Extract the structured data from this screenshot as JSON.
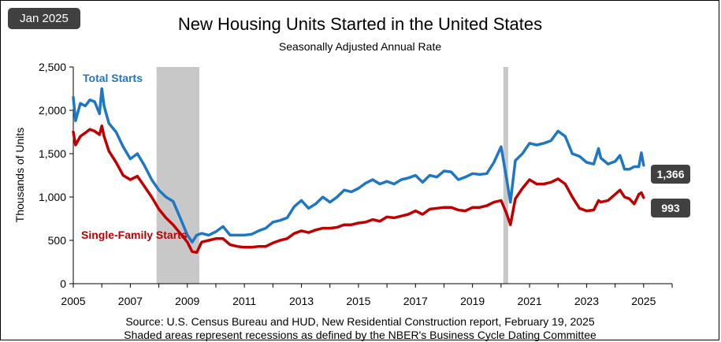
{
  "badge": "Jan 2025",
  "source_note": "Source:  U.S. Census Bureau and HUD, New Residential Construction report, February 19, 2025",
  "recession_note": "Shaded areas represent recessions as defined by the NBER's Business Cycle Dating Committee",
  "colors": {
    "total": "#1f77c4",
    "single": "#c00000",
    "recession": "#c8c8c8",
    "end_badge": "#404040"
  },
  "chart_data": {
    "type": "line",
    "title": "New Housing Units Started in the United States",
    "subtitle": "Seasonally Adjusted  Annual  Rate",
    "ylabel": "Thousands of Units",
    "xlabel": "",
    "xlim": [
      2005,
      2026
    ],
    "ylim": [
      0,
      2500
    ],
    "y_ticks": [
      0,
      500,
      1000,
      1500,
      2000,
      2500
    ],
    "y_tick_labels": [
      "0",
      "500",
      "1,000",
      "1,500",
      "2,000",
      "2,500"
    ],
    "x_ticks": [
      2005,
      2007,
      2009,
      2011,
      2013,
      2015,
      2017,
      2019,
      2021,
      2023,
      2025
    ],
    "x_tick_labels": [
      "2005",
      "2007",
      "2009",
      "2011",
      "2013",
      "2015",
      "2017",
      "2019",
      "2021",
      "2023",
      "2025"
    ],
    "grid": false,
    "recessions": [
      [
        2007.92,
        2009.42
      ],
      [
        2020.08,
        2020.25
      ]
    ],
    "series": [
      {
        "name": "Total Starts",
        "end_label": "1,366",
        "x": [
          2005.0,
          2005.08,
          2005.25,
          2005.42,
          2005.58,
          2005.75,
          2005.92,
          2006.0,
          2006.08,
          2006.25,
          2006.5,
          2006.75,
          2007.0,
          2007.25,
          2007.5,
          2007.75,
          2008.0,
          2008.25,
          2008.5,
          2008.75,
          2009.0,
          2009.17,
          2009.33,
          2009.5,
          2009.75,
          2010.0,
          2010.25,
          2010.5,
          2010.75,
          2011.0,
          2011.25,
          2011.5,
          2011.75,
          2012.0,
          2012.25,
          2012.5,
          2012.75,
          2013.0,
          2013.25,
          2013.5,
          2013.75,
          2014.0,
          2014.25,
          2014.5,
          2014.75,
          2015.0,
          2015.25,
          2015.5,
          2015.75,
          2016.0,
          2016.25,
          2016.5,
          2016.75,
          2017.0,
          2017.25,
          2017.5,
          2017.75,
          2018.0,
          2018.25,
          2018.5,
          2018.75,
          2019.0,
          2019.25,
          2019.5,
          2019.75,
          2020.0,
          2020.17,
          2020.33,
          2020.5,
          2020.75,
          2021.0,
          2021.25,
          2021.5,
          2021.75,
          2022.0,
          2022.25,
          2022.5,
          2022.75,
          2023.0,
          2023.25,
          2023.42,
          2023.5,
          2023.75,
          2024.0,
          2024.17,
          2024.33,
          2024.5,
          2024.67,
          2024.83,
          2024.92,
          2025.0
        ],
        "values": [
          2150,
          1880,
          2080,
          2050,
          2120,
          2100,
          1960,
          2250,
          2050,
          1850,
          1750,
          1580,
          1440,
          1500,
          1360,
          1200,
          1080,
          1000,
          950,
          760,
          560,
          480,
          560,
          580,
          560,
          600,
          660,
          560,
          560,
          560,
          570,
          610,
          640,
          710,
          730,
          760,
          890,
          960,
          870,
          920,
          1000,
          940,
          1000,
          1080,
          1060,
          1100,
          1160,
          1200,
          1150,
          1180,
          1150,
          1200,
          1220,
          1250,
          1170,
          1250,
          1230,
          1300,
          1290,
          1200,
          1230,
          1270,
          1260,
          1270,
          1400,
          1580,
          1260,
          940,
          1420,
          1500,
          1620,
          1600,
          1620,
          1650,
          1760,
          1700,
          1500,
          1470,
          1400,
          1380,
          1560,
          1450,
          1380,
          1410,
          1480,
          1320,
          1320,
          1350,
          1350,
          1510,
          1366
        ]
      },
      {
        "name": "Single-Family Starts",
        "end_label": "993",
        "x": [
          2005.0,
          2005.08,
          2005.25,
          2005.42,
          2005.58,
          2005.75,
          2005.92,
          2006.0,
          2006.08,
          2006.25,
          2006.5,
          2006.75,
          2007.0,
          2007.25,
          2007.5,
          2007.75,
          2008.0,
          2008.25,
          2008.5,
          2008.75,
          2009.0,
          2009.17,
          2009.33,
          2009.5,
          2009.75,
          2010.0,
          2010.25,
          2010.5,
          2010.75,
          2011.0,
          2011.25,
          2011.5,
          2011.75,
          2012.0,
          2012.25,
          2012.5,
          2012.75,
          2013.0,
          2013.25,
          2013.5,
          2013.75,
          2014.0,
          2014.25,
          2014.5,
          2014.75,
          2015.0,
          2015.25,
          2015.5,
          2015.75,
          2016.0,
          2016.25,
          2016.5,
          2016.75,
          2017.0,
          2017.25,
          2017.5,
          2017.75,
          2018.0,
          2018.25,
          2018.5,
          2018.75,
          2019.0,
          2019.25,
          2019.5,
          2019.75,
          2020.0,
          2020.17,
          2020.33,
          2020.5,
          2020.75,
          2021.0,
          2021.25,
          2021.5,
          2021.75,
          2022.0,
          2022.25,
          2022.5,
          2022.75,
          2023.0,
          2023.25,
          2023.42,
          2023.5,
          2023.75,
          2024.0,
          2024.17,
          2024.33,
          2024.5,
          2024.67,
          2024.83,
          2024.92,
          2025.0
        ],
        "values": [
          1750,
          1600,
          1700,
          1740,
          1780,
          1760,
          1720,
          1820,
          1700,
          1530,
          1400,
          1250,
          1200,
          1240,
          1120,
          1000,
          860,
          760,
          680,
          580,
          480,
          370,
          360,
          480,
          500,
          520,
          520,
          450,
          430,
          420,
          420,
          430,
          430,
          470,
          500,
          520,
          580,
          610,
          590,
          620,
          640,
          640,
          650,
          680,
          680,
          700,
          710,
          740,
          720,
          770,
          760,
          780,
          800,
          840,
          800,
          860,
          870,
          880,
          880,
          850,
          840,
          880,
          880,
          900,
          940,
          960,
          830,
          680,
          980,
          1100,
          1200,
          1150,
          1150,
          1170,
          1210,
          1150,
          1000,
          870,
          840,
          850,
          960,
          940,
          960,
          1030,
          1080,
          1000,
          980,
          920,
          1030,
          1050,
          993
        ]
      }
    ]
  }
}
